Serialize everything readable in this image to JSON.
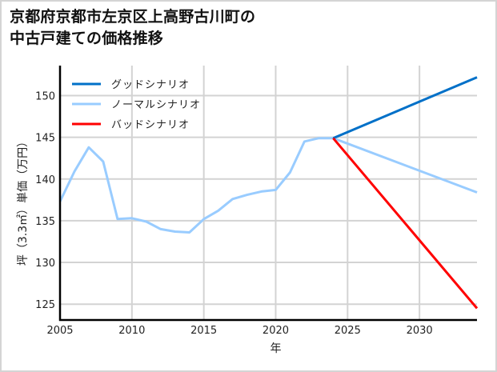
{
  "title_lines": [
    "京都府京都市左京区上高野古川町の",
    "中古戸建ての価格推移"
  ],
  "chart_data": {
    "type": "line",
    "title": "京都府京都市左京区上高野古川町の中古戸建ての価格推移",
    "xlabel": "年",
    "ylabel": "坪（3.3㎡）単価（万円）",
    "xlim": [
      2005,
      2034
    ],
    "ylim": [
      123.1,
      153.6
    ],
    "xticks": [
      2005,
      2010,
      2015,
      2020,
      2025,
      2030
    ],
    "yticks": [
      125,
      130,
      135,
      140,
      145,
      150
    ],
    "grid": true,
    "legend_position": "upper left",
    "series": [
      {
        "name": "グッドシナリオ",
        "color": "#0070c8",
        "x": [
          2024,
          2034
        ],
        "values": [
          144.9,
          152.2
        ]
      },
      {
        "name": "ノーマルシナリオ",
        "color": "#99ccff",
        "x": [
          2005,
          2006,
          2007,
          2008,
          2009,
          2010,
          2011,
          2012,
          2013,
          2014,
          2015,
          2016,
          2017,
          2018,
          2019,
          2020,
          2021,
          2022,
          2023,
          2024,
          2034
        ],
        "values": [
          137.3,
          140.9,
          143.8,
          142.1,
          135.2,
          135.3,
          134.9,
          134.0,
          133.7,
          133.6,
          135.2,
          136.2,
          137.6,
          138.1,
          138.5,
          138.7,
          140.8,
          144.5,
          144.9,
          144.9,
          138.4
        ]
      },
      {
        "name": "バッドシナリオ",
        "color": "#ff0000",
        "x": [
          2024,
          2034
        ],
        "values": [
          144.9,
          124.5
        ]
      }
    ]
  }
}
